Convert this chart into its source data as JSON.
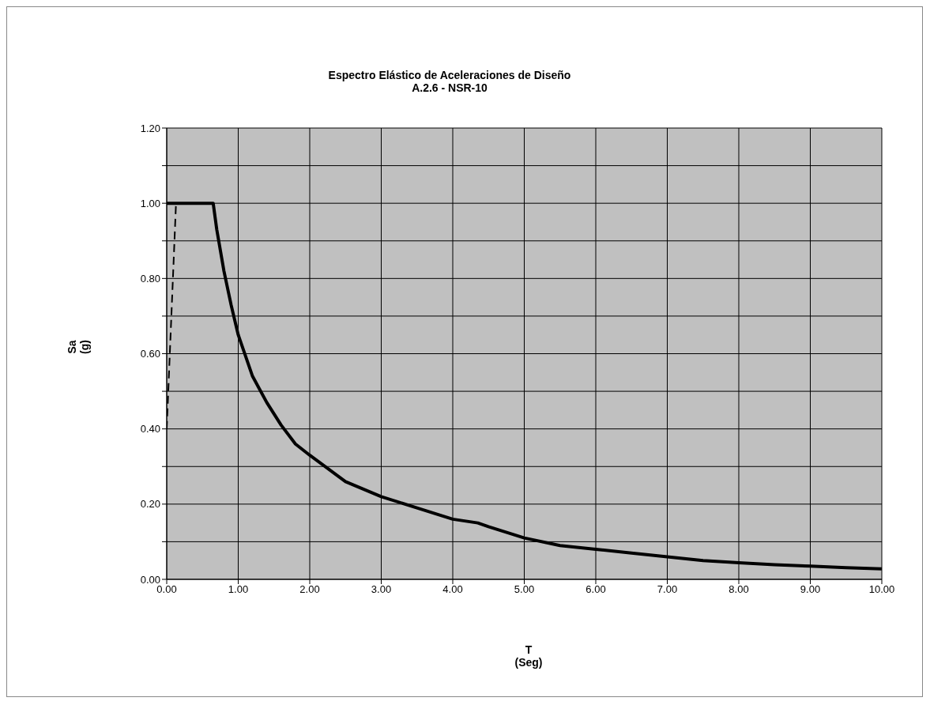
{
  "chart_data": {
    "type": "line",
    "title": "Espectro Elástico de Aceleraciones de Diseño",
    "subtitle": "A.2.6 - NSR-10",
    "xlabel": "T\n(Seg)",
    "ylabel": "Sa\n(g)",
    "xlim": [
      0,
      10
    ],
    "xticks": [
      {
        "value": 0,
        "label": "0.00"
      },
      {
        "value": 1,
        "label": "1.00"
      },
      {
        "value": 2,
        "label": "2.00"
      },
      {
        "value": 3,
        "label": "3.00"
      },
      {
        "value": 4,
        "label": "4.00"
      },
      {
        "value": 5,
        "label": "5.00"
      },
      {
        "value": 6,
        "label": "6.00"
      },
      {
        "value": 7,
        "label": "7.00"
      },
      {
        "value": 8,
        "label": "8.00"
      },
      {
        "value": 9,
        "label": "9.00"
      },
      {
        "value": 10,
        "label": "10.00"
      }
    ],
    "ylim": [
      0,
      1.2
    ],
    "yticks": [
      {
        "value": 0,
        "label": "0.00"
      },
      {
        "value": 0.1,
        "label": null
      },
      {
        "value": 0.2,
        "label": "0.20"
      },
      {
        "value": 0.3,
        "label": null
      },
      {
        "value": 0.4,
        "label": "0.40"
      },
      {
        "value": 0.5,
        "label": null
      },
      {
        "value": 0.6,
        "label": "0.60"
      },
      {
        "value": 0.7,
        "label": null
      },
      {
        "value": 0.8,
        "label": "0.80"
      },
      {
        "value": 0.9,
        "label": null
      },
      {
        "value": 1,
        "label": "1.00"
      },
      {
        "value": 1.1,
        "label": null
      },
      {
        "value": 1.2,
        "label": "1.20"
      }
    ],
    "grid": true,
    "marker": "none",
    "series": [
      {
        "color": "#000000",
        "line_style": "dashed",
        "x": [
          0,
          0.13
        ],
        "values": [
          0.4,
          1.0
        ]
      },
      {
        "color": "#000000",
        "line_style": "solid",
        "x": [
          0,
          0.65,
          0.7,
          0.8,
          0.9,
          1.0,
          1.2,
          1.4,
          1.6,
          1.8,
          2.0,
          2.5,
          3.0,
          3.5,
          4.0,
          4.35,
          4.5,
          5,
          5.5,
          6,
          6.5,
          7,
          7.5,
          8,
          8.5,
          9,
          9.5,
          10
        ],
        "values": [
          1.0,
          1.0,
          0.93,
          0.82,
          0.73,
          0.65,
          0.54,
          0.47,
          0.41,
          0.36,
          0.33,
          0.26,
          0.22,
          0.19,
          0.16,
          0.15,
          0.14,
          0.11,
          0.09,
          0.08,
          0.07,
          0.06,
          0.05,
          0.044,
          0.039,
          0.035,
          0.031,
          0.028
        ]
      }
    ]
  }
}
